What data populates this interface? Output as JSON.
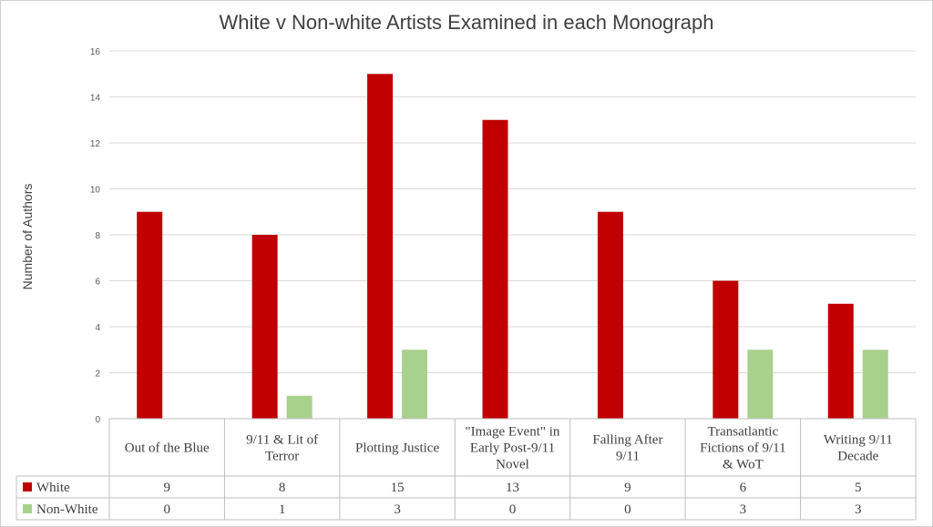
{
  "chart_data": {
    "type": "bar",
    "title": "White v Non-white Artists Examined in each Monograph",
    "ylabel": "Number of Authors",
    "xlabel": "",
    "ylim": [
      0,
      16
    ],
    "yticks": [
      0,
      2,
      4,
      6,
      8,
      10,
      12,
      14,
      16
    ],
    "grid": true,
    "legend": "data-table",
    "categories": [
      [
        "Out of the Blue"
      ],
      [
        "9/11 & Lit of",
        "Terror"
      ],
      [
        "Plotting Justice"
      ],
      [
        "\"Image Event\" in",
        "Early Post-9/11",
        "Novel"
      ],
      [
        "Falling After",
        "9/11"
      ],
      [
        "Transatlantic",
        "Fictions of 9/11",
        "& WoT"
      ],
      [
        "Writing 9/11",
        "Decade"
      ]
    ],
    "series": [
      {
        "name": "White",
        "color": "#c00000",
        "values": [
          9,
          8,
          15,
          13,
          9,
          6,
          5
        ]
      },
      {
        "name": "Non-White",
        "color": "#a9d18e",
        "values": [
          0,
          1,
          3,
          0,
          0,
          3,
          3
        ]
      }
    ]
  }
}
